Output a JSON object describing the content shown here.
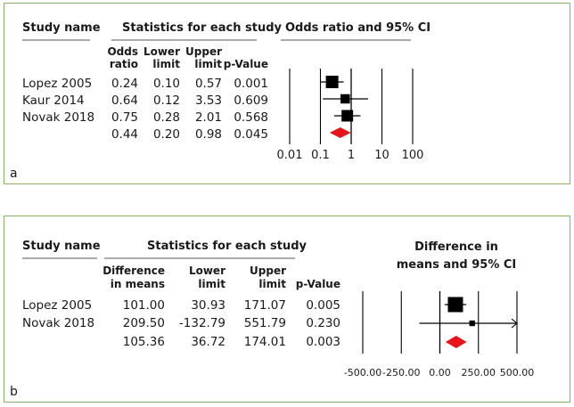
{
  "chart_data": [
    {
      "type": "forest",
      "panel_label": "a",
      "headers": {
        "study_name": "Study name",
        "statistics": "Statistics for each study",
        "plot_title": "Odds ratio and 95% CI",
        "col1": [
          "Odds",
          "ratio"
        ],
        "col2": [
          "Lower",
          "limit"
        ],
        "col3": [
          "Upper",
          "limit"
        ],
        "col4": "p-Value"
      },
      "scale": "log",
      "xlim": [
        0.01,
        100
      ],
      "ticks": [
        0.01,
        0.1,
        1,
        10,
        100
      ],
      "tick_labels": [
        "0.01",
        "0.1",
        "1",
        "10",
        "100"
      ],
      "studies": [
        {
          "name": "Lopez 2005",
          "effect": 0.24,
          "lower": 0.1,
          "upper": 0.57,
          "p": 0.001,
          "effect_text": "0.24",
          "lower_text": "0.10",
          "upper_text": "0.57",
          "p_text": "0.001",
          "weight": 1.0
        },
        {
          "name": "Kaur 2014",
          "effect": 0.64,
          "lower": 0.12,
          "upper": 3.53,
          "p": 0.609,
          "effect_text": "0.64",
          "lower_text": "0.12",
          "upper_text": "3.53",
          "p_text": "0.609",
          "weight": 0.5
        },
        {
          "name": "Novak 2018",
          "effect": 0.75,
          "lower": 0.28,
          "upper": 2.01,
          "p": 0.568,
          "effect_text": "0.75",
          "lower_text": "0.28",
          "upper_text": "2.01",
          "p_text": "0.568",
          "weight": 0.85
        }
      ],
      "summary": {
        "effect": 0.44,
        "lower": 0.2,
        "upper": 0.98,
        "p": 0.045,
        "effect_text": "0.44",
        "lower_text": "0.20",
        "upper_text": "0.98",
        "p_text": "0.045"
      },
      "colors": {
        "marker": "#000000",
        "summary": "#e8141c",
        "frame": "#86b36a"
      }
    },
    {
      "type": "forest",
      "panel_label": "b",
      "headers": {
        "study_name": "Study name",
        "statistics": "Statistics for each study",
        "plot_title": [
          "Difference in",
          "means and 95% CI"
        ],
        "col1": [
          "Difference",
          "in means"
        ],
        "col2": [
          "Lower",
          "limit"
        ],
        "col3": [
          "Upper",
          "limit"
        ],
        "col4": "p-Value"
      },
      "scale": "linear",
      "xlim": [
        -500,
        500
      ],
      "ticks": [
        -500,
        -250,
        0,
        250,
        500
      ],
      "tick_labels": [
        "-500.00",
        "-250.00",
        "0.00",
        "250.00",
        "500.00"
      ],
      "studies": [
        {
          "name": "Lopez 2005",
          "effect": 101.0,
          "lower": 30.93,
          "upper": 171.07,
          "p": 0.005,
          "effect_text": "101.00",
          "lower_text": "30.93",
          "upper_text": "171.07",
          "p_text": "0.005",
          "weight": 1.0
        },
        {
          "name": "Novak 2018",
          "effect": 209.5,
          "lower": -132.79,
          "upper": 551.79,
          "p": 0.23,
          "effect_text": "209.50",
          "lower_text": "-132.79",
          "upper_text": "551.79",
          "p_text": "0.230",
          "weight": 0.18
        }
      ],
      "summary": {
        "effect": 105.36,
        "lower": 36.72,
        "upper": 174.01,
        "p": 0.003,
        "effect_text": "105.36",
        "lower_text": "36.72",
        "upper_text": "174.01",
        "p_text": "0.003"
      },
      "colors": {
        "marker": "#000000",
        "summary": "#e8141c",
        "frame": "#86b36a"
      }
    }
  ]
}
